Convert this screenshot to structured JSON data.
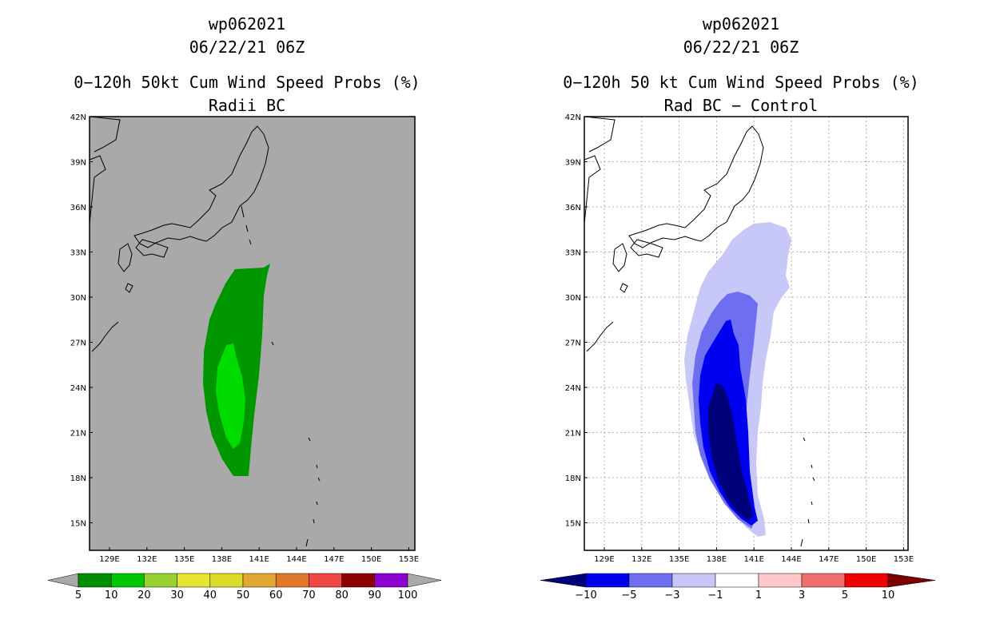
{
  "left_panel": {
    "storm_id": "wp062021",
    "datetime": "06/22/21 06Z",
    "product": "0−120h 50kt Cum Wind Speed Probs (%)",
    "subtitle": "Radii BC",
    "colorbar": {
      "labels": [
        "5",
        "10",
        "20",
        "30",
        "40",
        "50",
        "60",
        "70",
        "80",
        "90",
        "100"
      ],
      "colors": [
        "#008f00",
        "#00c800",
        "#96d232",
        "#e6e632",
        "#dcdc28",
        "#e0a832",
        "#e07828",
        "#f04646",
        "#8c0000",
        "#8c00d2"
      ]
    },
    "colors": {
      "ocean": "#a9a9a9",
      "prob_5_10": "#009600",
      "prob_10_20": "#00dc00"
    }
  },
  "right_panel": {
    "storm_id": "wp062021",
    "datetime": "06/22/21 06Z",
    "product": "0−120h 50 kt Cum Wind Speed Probs (%)",
    "subtitle": "Rad BC − Control",
    "colorbar": {
      "labels": [
        "−10",
        "−5",
        "−3",
        "−1",
        "1",
        "3",
        "5",
        "10"
      ],
      "colors": [
        "#00007a",
        "#0000f0",
        "#6e6ef0",
        "#c8c8f8",
        "#ffffff",
        "#ffc8c8",
        "#f06e6e",
        "#f00000",
        "#7a0000"
      ]
    },
    "colors": {
      "diff_lt_m10": "#00007a",
      "diff_m10_m5": "#0000f0",
      "diff_m5_m3": "#6e6ef0",
      "diff_m3_m1": "#c8c8f8"
    }
  },
  "axes": {
    "lat_labels": [
      "42N",
      "39N",
      "36N",
      "33N",
      "30N",
      "27N",
      "24N",
      "21N",
      "18N",
      "15N"
    ],
    "lon_labels": [
      "129E",
      "132E",
      "135E",
      "138E",
      "141E",
      "144E",
      "147E",
      "150E",
      "153E"
    ]
  }
}
